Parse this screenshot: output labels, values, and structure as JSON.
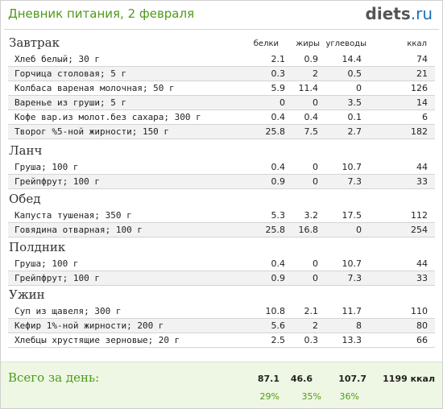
{
  "header": {
    "title": "Дневник питания, 2 февраля",
    "logo_brand": "diets",
    "logo_domain": ".ru"
  },
  "columns": {
    "protein": "белки",
    "fat": "жиры",
    "carbs": "углеводы",
    "kcal": "ккал"
  },
  "meals": [
    {
      "title": "Завтрак",
      "items": [
        {
          "name": "Хлеб белый; 30 г",
          "protein": "2.1",
          "fat": "0.9",
          "carbs": "14.4",
          "kcal": "74"
        },
        {
          "name": "Горчица столовая; 5 г",
          "protein": "0.3",
          "fat": "2",
          "carbs": "0.5",
          "kcal": "21"
        },
        {
          "name": "Колбаса вареная молочная; 50 г",
          "protein": "5.9",
          "fat": "11.4",
          "carbs": "0",
          "kcal": "126"
        },
        {
          "name": "Варенье из груши; 5 г",
          "protein": "0",
          "fat": "0",
          "carbs": "3.5",
          "kcal": "14"
        },
        {
          "name": "Кофе вар.из молот.без сахара; 300 г",
          "protein": "0.4",
          "fat": "0.4",
          "carbs": "0.1",
          "kcal": "6"
        },
        {
          "name": "Творог %5-ной жирности; 150 г",
          "protein": "25.8",
          "fat": "7.5",
          "carbs": "2.7",
          "kcal": "182"
        }
      ]
    },
    {
      "title": "Ланч",
      "items": [
        {
          "name": "Груша; 100 г",
          "protein": "0.4",
          "fat": "0",
          "carbs": "10.7",
          "kcal": "44"
        },
        {
          "name": "Грейпфрут; 100 г",
          "protein": "0.9",
          "fat": "0",
          "carbs": "7.3",
          "kcal": "33"
        }
      ]
    },
    {
      "title": "Обед",
      "items": [
        {
          "name": "Капуста тушеная; 350 г",
          "protein": "5.3",
          "fat": "3.2",
          "carbs": "17.5",
          "kcal": "112"
        },
        {
          "name": "Говядина отварная; 100 г",
          "protein": "25.8",
          "fat": "16.8",
          "carbs": "0",
          "kcal": "254"
        }
      ]
    },
    {
      "title": "Полдник",
      "items": [
        {
          "name": "Груша; 100 г",
          "protein": "0.4",
          "fat": "0",
          "carbs": "10.7",
          "kcal": "44"
        },
        {
          "name": "Грейпфрут; 100 г",
          "protein": "0.9",
          "fat": "0",
          "carbs": "7.3",
          "kcal": "33"
        }
      ]
    },
    {
      "title": "Ужин",
      "items": [
        {
          "name": "Суп из щавеля; 300 г",
          "protein": "10.8",
          "fat": "2.1",
          "carbs": "11.7",
          "kcal": "110"
        },
        {
          "name": "Кефир 1%-ной жирности; 200 г",
          "protein": "5.6",
          "fat": "2",
          "carbs": "8",
          "kcal": "80"
        },
        {
          "name": "Хлебцы хрустящие зерновые; 20 г",
          "protein": "2.5",
          "fat": "0.3",
          "carbs": "13.3",
          "kcal": "66"
        }
      ]
    }
  ],
  "totals": {
    "label": "Всего за день:",
    "protein": "87.1",
    "fat": "46.6",
    "carbs": "107.7",
    "kcal": "1199 ккал",
    "protein_pct": "29%",
    "fat_pct": "35%",
    "carbs_pct": "36%"
  },
  "colors": {
    "accent_green": "#4f9a18",
    "brand_blue": "#1b6ebf",
    "totals_bg": "#eef7e4"
  }
}
